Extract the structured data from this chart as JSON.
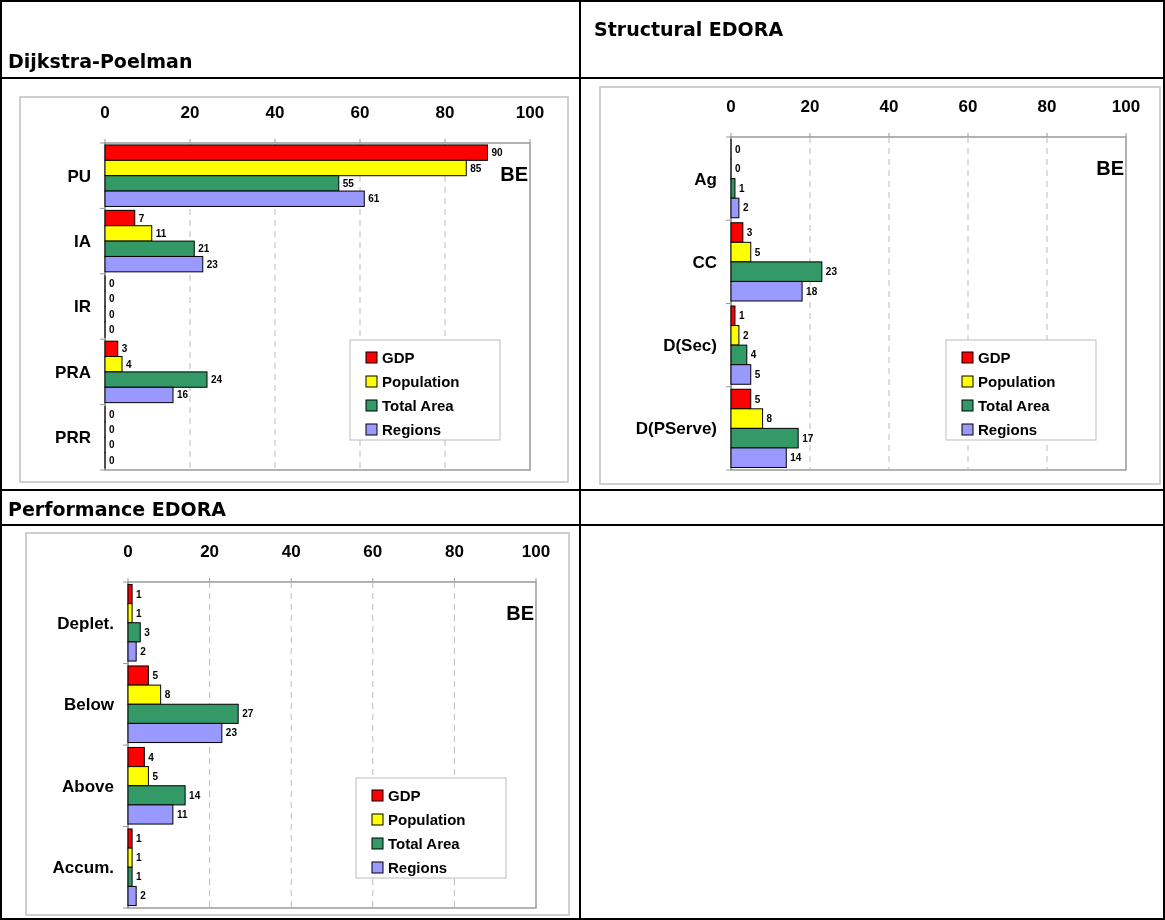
{
  "chart_data": [
    {
      "type": "bar",
      "orientation": "horizontal",
      "title": "Dijkstra-Poelman",
      "categories": [
        "PU",
        "IA",
        "IR",
        "PRA",
        "PRR"
      ],
      "series": [
        {
          "name": "GDP",
          "color": "#ff0000",
          "values": [
            90,
            7,
            0,
            3,
            0
          ]
        },
        {
          "name": "Population",
          "color": "#ffff00",
          "values": [
            85,
            11,
            0,
            4,
            0
          ]
        },
        {
          "name": "Total Area",
          "color": "#339966",
          "values": [
            55,
            21,
            0,
            24,
            0
          ]
        },
        {
          "name": "Regions",
          "color": "#9999ff",
          "values": [
            61,
            23,
            0,
            16,
            0
          ]
        }
      ],
      "xlim": [
        0,
        100
      ],
      "xticks": [
        0,
        20,
        40,
        60,
        80,
        100
      ],
      "grid": "x",
      "legend": "bottom right",
      "data_labels": true,
      "annotations": [
        "BE"
      ]
    },
    {
      "type": "bar",
      "orientation": "horizontal",
      "title": "Structural EDORA",
      "categories": [
        "Ag",
        "CC",
        "D(Sec)",
        "D(PServe)"
      ],
      "series": [
        {
          "name": "GDP",
          "color": "#ff0000",
          "values": [
            0,
            3,
            1,
            5
          ]
        },
        {
          "name": "Population",
          "color": "#ffff00",
          "values": [
            0,
            5,
            2,
            8
          ]
        },
        {
          "name": "Total Area",
          "color": "#339966",
          "values": [
            1,
            23,
            4,
            17
          ]
        },
        {
          "name": "Regions",
          "color": "#9999ff",
          "values": [
            2,
            18,
            5,
            14
          ]
        }
      ],
      "xlim": [
        0,
        100
      ],
      "xticks": [
        0,
        20,
        40,
        60,
        80,
        100
      ],
      "grid": "x",
      "legend": "bottom right",
      "data_labels": true,
      "annotations": [
        "BE"
      ]
    },
    {
      "type": "bar",
      "orientation": "horizontal",
      "title": "Performance EDORA",
      "categories": [
        "Deplet.",
        "Below",
        "Above",
        "Accum."
      ],
      "series": [
        {
          "name": "GDP",
          "color": "#ff0000",
          "values": [
            1,
            5,
            4,
            1
          ]
        },
        {
          "name": "Population",
          "color": "#ffff00",
          "values": [
            1,
            8,
            5,
            1
          ]
        },
        {
          "name": "Total Area",
          "color": "#339966",
          "values": [
            3,
            27,
            14,
            1
          ]
        },
        {
          "name": "Regions",
          "color": "#9999ff",
          "values": [
            2,
            23,
            11,
            2
          ]
        }
      ],
      "xlim": [
        0,
        100
      ],
      "xticks": [
        0,
        20,
        40,
        60,
        80,
        100
      ],
      "grid": "x",
      "legend": "bottom right",
      "data_labels": true,
      "annotations": [
        "BE"
      ]
    }
  ]
}
